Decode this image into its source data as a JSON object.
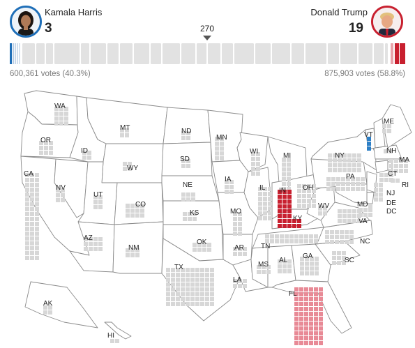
{
  "candidates": {
    "dem": {
      "name": "Kamala Harris",
      "electoral_votes": "3",
      "votes_text": "600,361 votes (40.3%)",
      "color": "#1f6fb8",
      "tile_color": "#2d7fc6"
    },
    "rep": {
      "name": "Donald Trump",
      "electoral_votes": "19",
      "votes_text": "875,903 votes (58.8%)",
      "color": "#c8202f",
      "tile_color": "#c8202f",
      "light_color": "#e88a96"
    }
  },
  "threshold": {
    "label": "270"
  },
  "colors": {
    "uncalled": "#d7d7d7",
    "bar_bg": "#e2e2e2",
    "border": "#8a8a8a",
    "map_fill": "#ffffff"
  },
  "state_labels": [
    "WA",
    "OR",
    "CA",
    "ID",
    "NV",
    "MT",
    "WY",
    "UT",
    "AZ",
    "CO",
    "NM",
    "ND",
    "SD",
    "NE",
    "KS",
    "OK",
    "TX",
    "MN",
    "IA",
    "MO",
    "AR",
    "LA",
    "WI",
    "IL",
    "MI",
    "IN",
    "OH",
    "KY",
    "TN",
    "MS",
    "AL",
    "GA",
    "FL",
    "SC",
    "NC",
    "VA",
    "WV",
    "PA",
    "NY",
    "MD",
    "DE",
    "DC",
    "NJ",
    "CT",
    "RI",
    "MA",
    "NH",
    "VT",
    "ME",
    "AK",
    "HI"
  ],
  "called_states": {
    "IN": "rep",
    "KY": "rep",
    "VT": "dem",
    "FL": "rep-leaning"
  }
}
